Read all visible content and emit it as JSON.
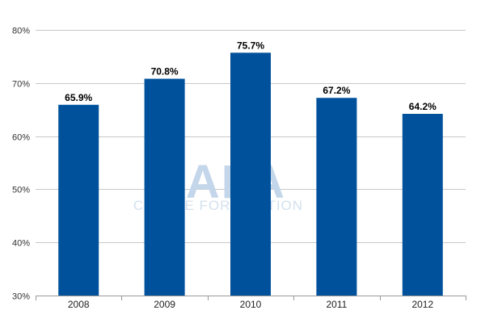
{
  "watermark": {
    "logo": "CAPA",
    "tagline": "CENTRE FOR AVIATION"
  },
  "chart_data": {
    "type": "bar",
    "title": "",
    "xlabel": "",
    "ylabel": "",
    "categories": [
      "2008",
      "2009",
      "2010",
      "2011",
      "2012"
    ],
    "values": [
      65.9,
      70.8,
      75.7,
      67.2,
      64.2
    ],
    "value_labels": [
      "65.9%",
      "70.8%",
      "75.7%",
      "67.2%",
      "64.2%"
    ],
    "ylim": [
      30,
      80
    ],
    "yticks": [
      30,
      40,
      50,
      60,
      70,
      80
    ],
    "ytick_labels": [
      "30%",
      "40%",
      "50%",
      "60%",
      "70%",
      "80%"
    ],
    "grid": true,
    "legend": "none",
    "colors": {
      "bar": "#00519c",
      "grid": "#c8c8c8",
      "axis": "#9a9a9a"
    }
  }
}
